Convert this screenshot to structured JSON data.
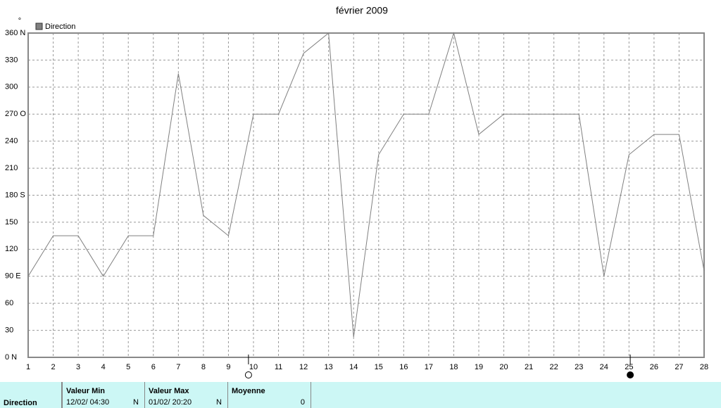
{
  "chart_data": {
    "type": "line",
    "title": "février 2009",
    "y_unit": "°",
    "x": [
      1,
      2,
      3,
      4,
      5,
      6,
      7,
      8,
      9,
      10,
      11,
      12,
      13,
      14,
      15,
      16,
      17,
      18,
      19,
      20,
      21,
      22,
      23,
      24,
      25,
      26,
      27,
      28
    ],
    "series": [
      {
        "name": "Direction",
        "color": "#808080",
        "values": [
          90,
          135,
          135,
          90,
          135,
          135,
          315,
          157.5,
          135,
          270,
          270,
          337.5,
          360,
          22.5,
          225,
          270,
          270,
          360,
          247.5,
          270,
          270,
          270,
          270,
          90,
          225,
          247.5,
          247.5,
          96
        ]
      }
    ],
    "xlim": [
      1,
      28
    ],
    "ylim": [
      0,
      360
    ],
    "xticks": [
      1,
      2,
      3,
      4,
      5,
      6,
      7,
      8,
      9,
      10,
      11,
      12,
      13,
      14,
      15,
      16,
      17,
      18,
      19,
      20,
      21,
      22,
      23,
      24,
      25,
      26,
      27,
      28
    ],
    "yticks": [
      {
        "value": 0,
        "label": "0   N"
      },
      30,
      60,
      {
        "value": 90,
        "label": "90   E"
      },
      120,
      150,
      {
        "value": 180,
        "label": "180 S"
      },
      210,
      240,
      {
        "value": 270,
        "label": "270 O"
      },
      300,
      330,
      {
        "value": 360,
        "label": "360 N"
      }
    ],
    "grid": true,
    "legend": "top-left",
    "moon_markers": [
      {
        "x": 9.8,
        "filled": false
      },
      {
        "x": 25.05,
        "filled": true
      }
    ]
  },
  "table": {
    "row_label": "Direction",
    "columns": [
      {
        "header": "Valeur Min",
        "value": "12/02/  04:30",
        "unit": "N"
      },
      {
        "header": "Valeur Max",
        "value": "01/02/  20:20",
        "unit": "N"
      },
      {
        "header": "Moyenne",
        "value": "0"
      }
    ]
  }
}
